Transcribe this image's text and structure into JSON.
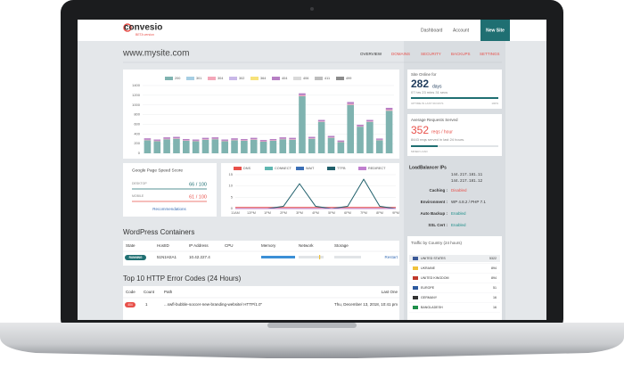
{
  "header": {
    "logo": "convesio",
    "beta": "BETA version",
    "nav": [
      "Dashboard",
      "Account"
    ],
    "button": "New Site"
  },
  "site_name": "www.mysite.com",
  "tabs": [
    "OVERVIEW",
    "DOMAINS",
    "SECURITY",
    "BACKUPS",
    "SETTINGS"
  ],
  "chart_data": [
    {
      "type": "bar",
      "stacked": true,
      "ylim": [
        0,
        1400
      ],
      "yticks": [
        0,
        200,
        400,
        600,
        800,
        1000,
        1200,
        1400
      ],
      "grid": true,
      "series": [
        {
          "name": "200",
          "color": "#7fb3b0",
          "values": [
            270,
            250,
            290,
            300,
            260,
            250,
            280,
            290,
            250,
            270,
            260,
            280,
            240,
            260,
            290,
            280,
            1180,
            300,
            650,
            320,
            230,
            1000,
            550,
            650,
            270,
            880
          ]
        },
        {
          "name": "301",
          "color": "#a6cee3",
          "values": [
            0,
            0,
            0,
            0,
            0,
            0,
            0,
            0,
            0,
            0,
            0,
            0,
            0,
            0,
            0,
            0,
            0,
            0,
            0,
            0,
            0,
            0,
            0,
            0,
            0,
            0
          ]
        },
        {
          "name": "304",
          "color": "#f4a7b9",
          "values": [
            10,
            10,
            10,
            10,
            10,
            10,
            10,
            10,
            10,
            10,
            10,
            10,
            10,
            10,
            10,
            10,
            20,
            10,
            10,
            10,
            10,
            20,
            10,
            10,
            10,
            20
          ]
        },
        {
          "name": "302",
          "color": "#c9b8e8",
          "values": [
            0,
            0,
            0,
            0,
            0,
            0,
            0,
            0,
            0,
            0,
            0,
            0,
            0,
            0,
            0,
            0,
            0,
            0,
            0,
            0,
            0,
            0,
            0,
            0,
            0,
            0
          ]
        },
        {
          "name": "364",
          "color": "#f7e27a",
          "values": [
            0,
            0,
            0,
            0,
            0,
            0,
            0,
            0,
            0,
            0,
            0,
            0,
            0,
            0,
            0,
            0,
            0,
            0,
            0,
            0,
            0,
            0,
            0,
            0,
            0,
            0
          ]
        },
        {
          "name": "404",
          "color": "#b77fc4",
          "values": [
            30,
            25,
            30,
            30,
            25,
            25,
            30,
            30,
            25,
            30,
            25,
            30,
            25,
            25,
            30,
            30,
            40,
            30,
            30,
            30,
            25,
            40,
            30,
            30,
            25,
            40
          ]
        },
        {
          "name": "406",
          "color": "#d9d9d9",
          "values": [
            0,
            0,
            0,
            0,
            0,
            0,
            0,
            0,
            0,
            0,
            0,
            0,
            0,
            0,
            0,
            0,
            0,
            0,
            0,
            0,
            0,
            0,
            0,
            0,
            0,
            0
          ]
        },
        {
          "name": "411",
          "color": "#bdbdbd",
          "values": [
            0,
            0,
            0,
            0,
            0,
            0,
            0,
            0,
            0,
            0,
            0,
            0,
            0,
            0,
            0,
            0,
            0,
            0,
            0,
            0,
            0,
            0,
            0,
            0,
            0,
            0
          ]
        },
        {
          "name": "499",
          "color": "#8c8c8c",
          "values": [
            0,
            0,
            0,
            0,
            0,
            0,
            0,
            0,
            0,
            0,
            0,
            0,
            0,
            0,
            0,
            0,
            0,
            0,
            0,
            0,
            0,
            0,
            0,
            0,
            0,
            0
          ]
        }
      ]
    },
    {
      "type": "line",
      "x": [
        "11AM",
        "12PM",
        "1PM",
        "2PM",
        "3PM",
        "4PM",
        "5PM",
        "6PM",
        "7PM",
        "8PM",
        "9PM"
      ],
      "ylim": [
        0,
        15
      ],
      "yticks": [
        0,
        5,
        10,
        15
      ],
      "grid": true,
      "series": [
        {
          "name": "DNS",
          "color": "#e8504a",
          "values": [
            0.5,
            0.5,
            0.5,
            0.5,
            0.5,
            0.5,
            0.5,
            0.5,
            0.5,
            0.5,
            0.5
          ]
        },
        {
          "name": "CONNECT",
          "color": "#5fb7b1",
          "values": [
            0,
            0,
            0,
            0,
            0,
            0,
            0,
            0,
            0,
            0,
            0
          ]
        },
        {
          "name": "WAIT",
          "color": "#3b6fb6",
          "values": [
            0,
            0,
            0,
            0,
            0,
            0,
            0,
            0,
            0,
            0,
            0
          ]
        },
        {
          "name": "TTFB",
          "color": "#1f5f6b",
          "values": [
            0,
            0,
            0,
            1,
            11,
            1,
            0,
            1,
            13,
            1,
            0
          ]
        },
        {
          "name": "REDIRECT",
          "color": "#c07fcf",
          "values": [
            0,
            0,
            0,
            0,
            0,
            0,
            0,
            0,
            0,
            0,
            0
          ]
        }
      ]
    }
  ],
  "speed": {
    "title": "Google Page Speed Score",
    "desktop_label": "DESKTOP",
    "desktop_score": "66 / 100",
    "mobile_label": "MOBILE",
    "mobile_score": "61 / 100",
    "link": "Recommendations"
  },
  "containers": {
    "title": "WordPress Containers",
    "columns": [
      "State",
      "HostID",
      "IP Address",
      "CPU",
      "Memory",
      "Network",
      "Storage"
    ],
    "row": {
      "state": "RUNNING",
      "host": "51N1H2A1",
      "ip": "10.42.227.4",
      "action": "Restart"
    }
  },
  "errors": {
    "title": "Top 10 HTTP Error Codes (24 Hours)",
    "columns": [
      "Code",
      "Count",
      "Path",
      "Last One"
    ],
    "row": {
      "code": "404",
      "count": "1",
      "path": "...swfl-bubble-soccer-new-branding-website/ HTTP/1.0\"",
      "last": "Thu, December 13, 2018, 10:41 pm"
    }
  },
  "uptime": {
    "label": "Site Online for",
    "days": "282",
    "unit": "days",
    "detail": "07 hrs 23 mins 31 secs",
    "caption": "UPTIME IN LAST 99 DAYS",
    "percent": "100%"
  },
  "requests": {
    "label": "Average Requests Served",
    "value": "352",
    "unit": "reqs / hour",
    "detail": "8443 reqs served in last 24 hours.",
    "caption": "MINER LOAD"
  },
  "loadbalancer": {
    "title": "LoadBalancer IPs",
    "ips": [
      "144.217.181.11",
      "144.217.181.12"
    ],
    "rows": [
      {
        "label": "Caching :",
        "value": "Disabled"
      },
      {
        "label": "Environment :",
        "value": "WP 4.8.2 / PHP 7.1"
      },
      {
        "label": "Auto Backup :",
        "value": "Enabled"
      },
      {
        "label": "SSL Cert :",
        "value": "Enabled"
      }
    ]
  },
  "traffic": {
    "title": "Traffic by Country (24 hours)",
    "rows": [
      {
        "country": "UNITED STATES",
        "count": "5322"
      },
      {
        "country": "UKRAINE",
        "count": "894"
      },
      {
        "country": "UNITED KINGDOM",
        "count": "894"
      },
      {
        "country": "EUROPE",
        "count": "51"
      },
      {
        "country": "GERMANY",
        "count": "16"
      },
      {
        "country": "BANGLADESH",
        "count": "16"
      }
    ]
  }
}
